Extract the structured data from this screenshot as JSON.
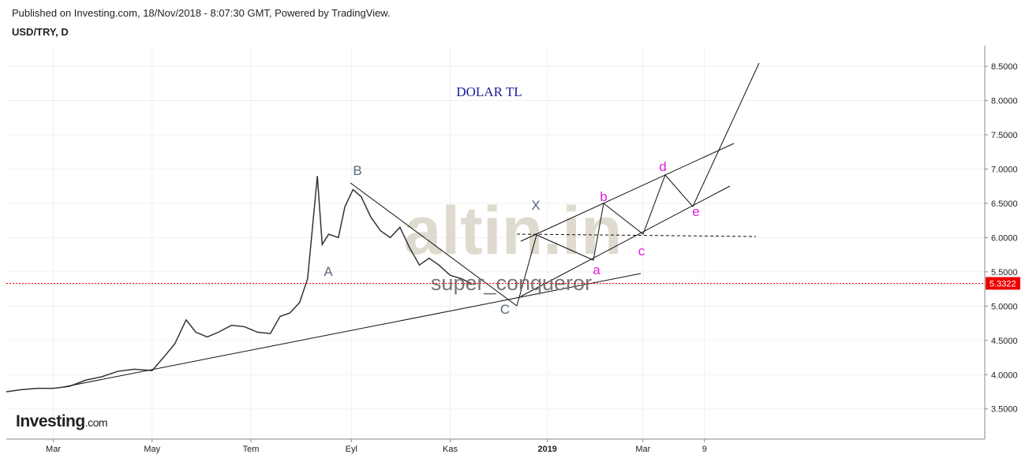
{
  "chart_data": {
    "type": "line",
    "header": "Published on Investing.com, 18/Nov/2018 - 8:07:30 GMT, Powered by TradingView.",
    "title": "USD/TRY, D",
    "annotation": "DOLAR TL",
    "author": "super_conqueror",
    "watermark": "altin.in",
    "logo": "Investing",
    "logo_suffix": ".com",
    "wave_labels": [
      "A",
      "B",
      "C",
      "X",
      "a",
      "b",
      "c",
      "d",
      "e"
    ],
    "last_price": 5.3322,
    "xlim": [
      31,
      635
    ],
    "xticks": [
      {
        "value": 60,
        "label": "Mar"
      },
      {
        "value": 121,
        "label": "May"
      },
      {
        "value": 182,
        "label": "Tem"
      },
      {
        "value": 244,
        "label": "Eyl"
      },
      {
        "value": 305,
        "label": "Kas"
      },
      {
        "value": 365,
        "label": "2019"
      },
      {
        "value": 424,
        "label": "Mar"
      },
      {
        "value": 462,
        "label": "9"
      }
    ],
    "ylim": [
      3.06,
      8.8
    ],
    "yticks": [
      {
        "value": 3.5,
        "label": "3.5000"
      },
      {
        "value": 4,
        "label": "4.0000"
      },
      {
        "value": 4.5,
        "label": "4.5000"
      },
      {
        "value": 5,
        "label": "5.0000"
      },
      {
        "value": 5.5,
        "label": "5.5000"
      },
      {
        "value": 6,
        "label": "6.0000"
      },
      {
        "value": 6.5,
        "label": "6.5000"
      },
      {
        "value": 7,
        "label": "7.0000"
      },
      {
        "value": 7.5,
        "label": "7.5000"
      },
      {
        "value": 8,
        "label": "8.0000"
      },
      {
        "value": 8.5,
        "label": "8.5000"
      }
    ],
    "grid": true,
    "series": [
      {
        "name": "USD/TRY",
        "color": "#333333",
        "x": [
          31,
          40,
          50,
          60,
          70,
          80,
          90,
          100,
          110,
          121,
          128,
          135,
          142,
          148,
          155,
          162,
          170,
          178,
          186,
          194,
          200,
          206,
          212,
          217,
          221,
          223,
          226,
          230,
          236,
          240,
          245,
          250,
          256,
          262,
          268,
          274,
          280,
          286,
          292,
          298,
          305,
          312,
          318
        ],
        "values": [
          3.75,
          3.78,
          3.8,
          3.8,
          3.83,
          3.92,
          3.97,
          4.05,
          4.08,
          4.06,
          4.25,
          4.45,
          4.8,
          4.62,
          4.55,
          4.62,
          4.72,
          4.7,
          4.62,
          4.6,
          4.85,
          4.9,
          5.05,
          5.4,
          6.4,
          6.9,
          5.9,
          6.05,
          6.0,
          6.45,
          6.7,
          6.6,
          6.3,
          6.1,
          6.0,
          6.15,
          5.85,
          5.6,
          5.7,
          5.6,
          5.45,
          5.4,
          5.33
        ]
      }
    ]
  }
}
